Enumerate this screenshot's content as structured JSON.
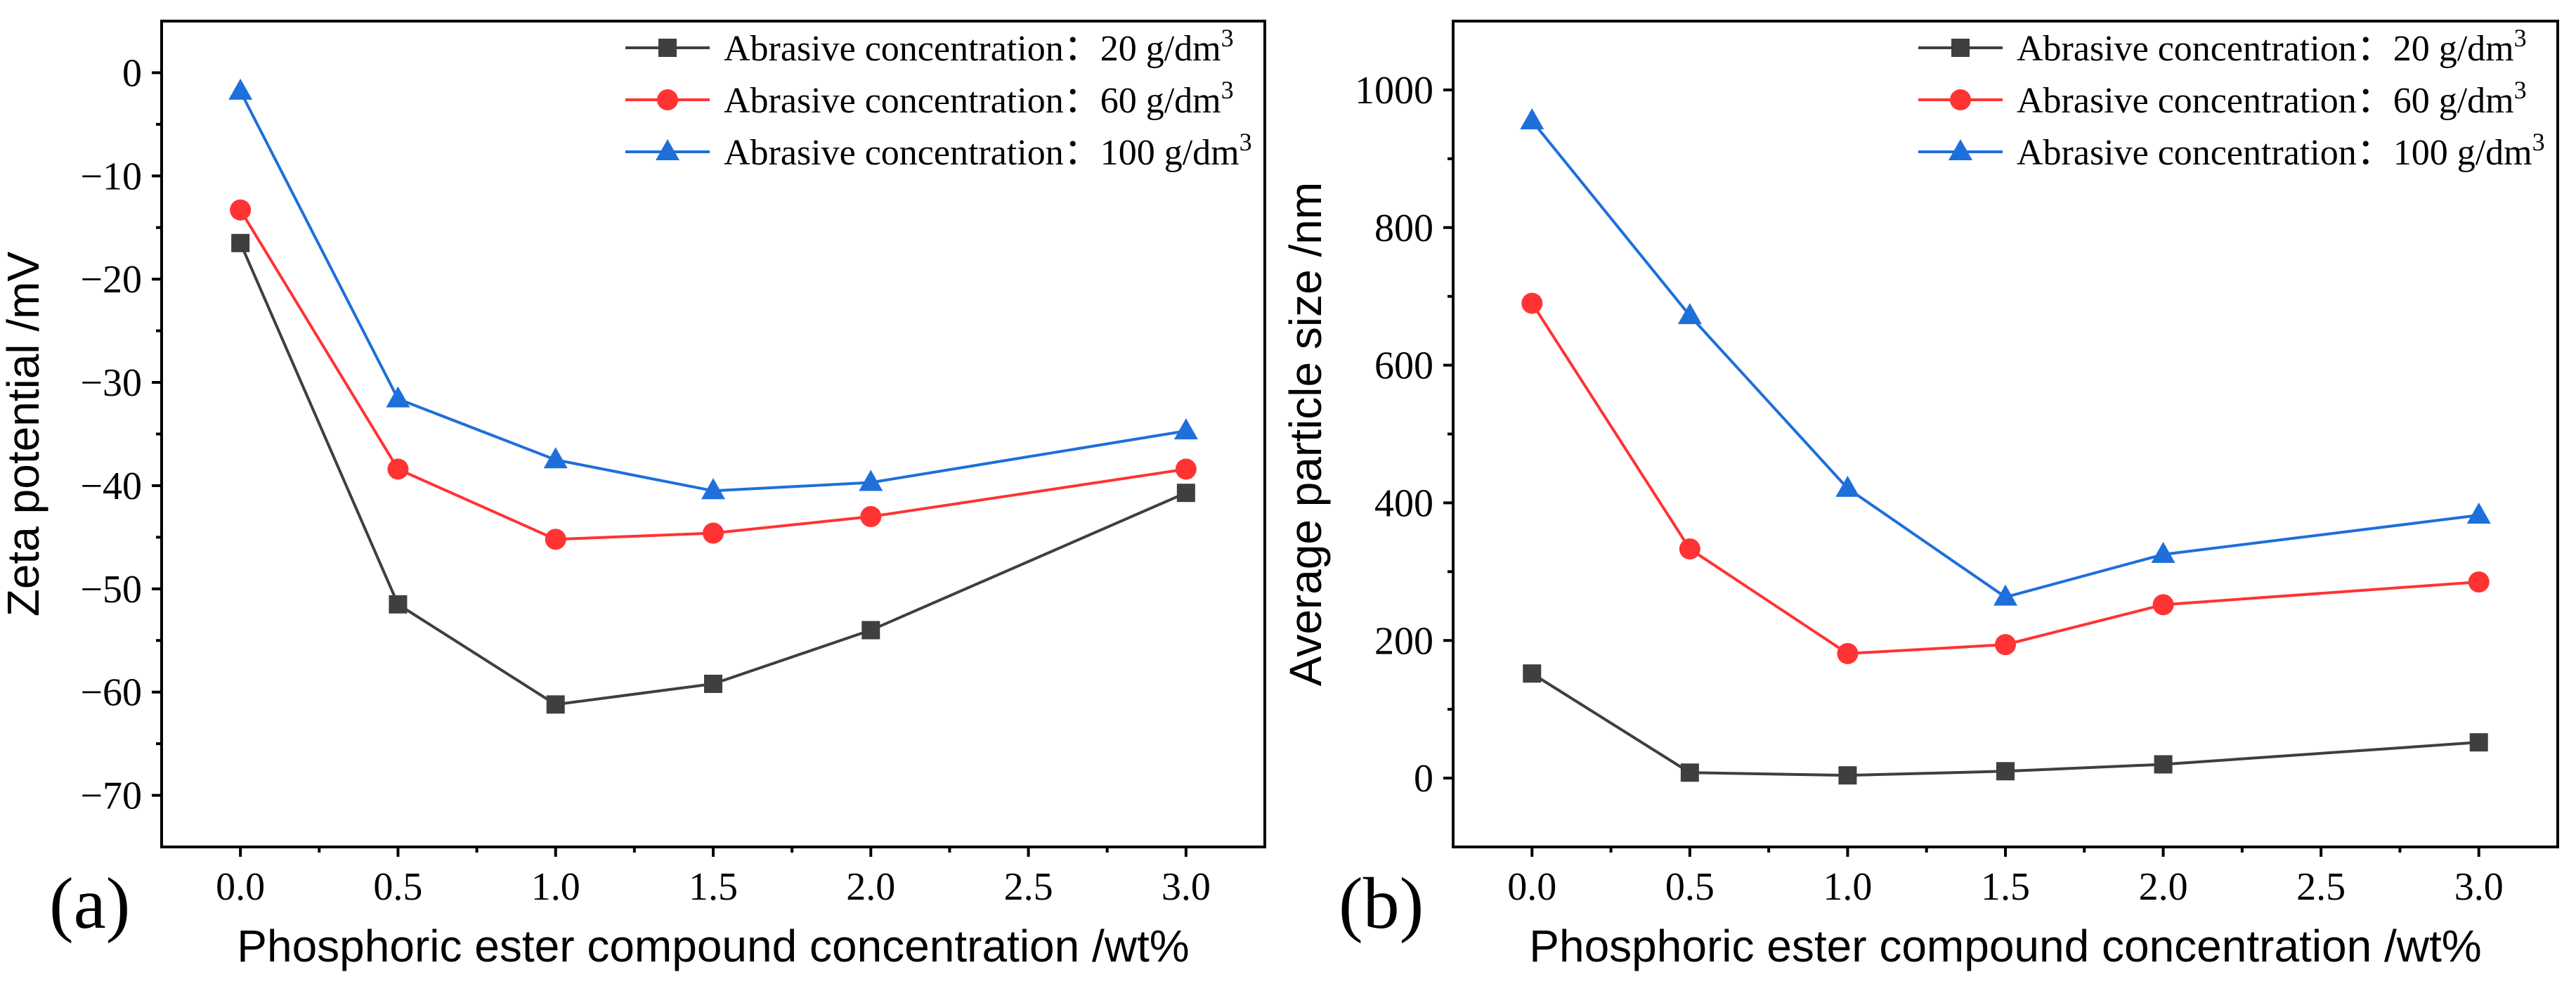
{
  "figure": {
    "panels": [
      "(a)",
      "(b)"
    ]
  },
  "colors": {
    "series20": "#3f3f3f",
    "series60": "#ff3333",
    "series100": "#1e6fd9"
  },
  "chart_data": [
    {
      "type": "line",
      "panel_label": "(a)",
      "xlabel": "Phosphoric ester compound concentration /wt%",
      "ylabel": "Zeta potential /mV",
      "xlim": [
        -0.25,
        3.25
      ],
      "ylim": [
        -75,
        5
      ],
      "xticks": [
        0.0,
        0.5,
        1.0,
        1.5,
        2.0,
        2.5,
        3.0
      ],
      "xtick_labels": [
        "0.0",
        "0.5",
        "1.0",
        "1.5",
        "2.0",
        "2.5",
        "3.0"
      ],
      "yticks": [
        0,
        -10,
        -20,
        -30,
        -40,
        -50,
        -60,
        -70
      ],
      "ytick_labels": [
        "0",
        "−10",
        "−20",
        "−30",
        "−40",
        "−50",
        "−60",
        "−70"
      ],
      "x": [
        0.0,
        0.5,
        1.0,
        1.5,
        2.0,
        3.0
      ],
      "legend_position": "top-right",
      "series": [
        {
          "name": "Abrasive concentration：20 g/dm3",
          "name_main": "Abrasive concentration：20 g/dm",
          "name_sup": "3",
          "marker": "square",
          "color": "#3f3f3f",
          "values": [
            -16.5,
            -51.5,
            -61.2,
            -59.2,
            -54.0,
            -40.7
          ]
        },
        {
          "name": "Abrasive concentration：60 g/dm3",
          "name_main": "Abrasive concentration：60 g/dm",
          "name_sup": "3",
          "marker": "circle",
          "color": "#ff3333",
          "values": [
            -13.3,
            -38.4,
            -45.2,
            -44.6,
            -43.0,
            -38.4
          ]
        },
        {
          "name": "Abrasive concentration：100 g/dm3",
          "name_main": "Abrasive concentration：100 g/dm",
          "name_sup": "3",
          "marker": "triangle",
          "color": "#1e6fd9",
          "values": [
            -1.8,
            -31.6,
            -37.5,
            -40.5,
            -39.7,
            -34.7
          ]
        }
      ]
    },
    {
      "type": "line",
      "panel_label": "(b)",
      "xlabel": "Phosphoric ester compound concentration /wt%",
      "ylabel": "Average particle size /nm",
      "xlim": [
        -0.25,
        3.25
      ],
      "ylim": [
        -100,
        1100
      ],
      "xticks": [
        0.0,
        0.5,
        1.0,
        1.5,
        2.0,
        2.5,
        3.0
      ],
      "xtick_labels": [
        "0.0",
        "0.5",
        "1.0",
        "1.5",
        "2.0",
        "2.5",
        "3.0"
      ],
      "yticks": [
        0,
        200,
        400,
        600,
        800,
        1000
      ],
      "ytick_labels": [
        "0",
        "200",
        "400",
        "600",
        "800",
        "1000"
      ],
      "x": [
        0.0,
        0.5,
        1.0,
        1.5,
        2.0,
        3.0
      ],
      "legend_position": "top-right",
      "series": [
        {
          "name": "Abrasive concentration：20 g/dm3",
          "name_main": "Abrasive concentration：20 g/dm",
          "name_sup": "3",
          "marker": "square",
          "color": "#3f3f3f",
          "values": [
            152,
            8,
            4,
            10,
            20,
            52
          ]
        },
        {
          "name": "Abrasive concentration：60 g/dm3",
          "name_main": "Abrasive concentration：60 g/dm",
          "name_sup": "3",
          "marker": "circle",
          "color": "#ff3333",
          "values": [
            690,
            333,
            181,
            194,
            252,
            285
          ]
        },
        {
          "name": "Abrasive concentration：100 g/dm3",
          "name_main": "Abrasive concentration：100 g/dm",
          "name_sup": "3",
          "marker": "triangle",
          "color": "#1e6fd9",
          "values": [
            955,
            672,
            421,
            263,
            325,
            382
          ]
        }
      ]
    }
  ]
}
